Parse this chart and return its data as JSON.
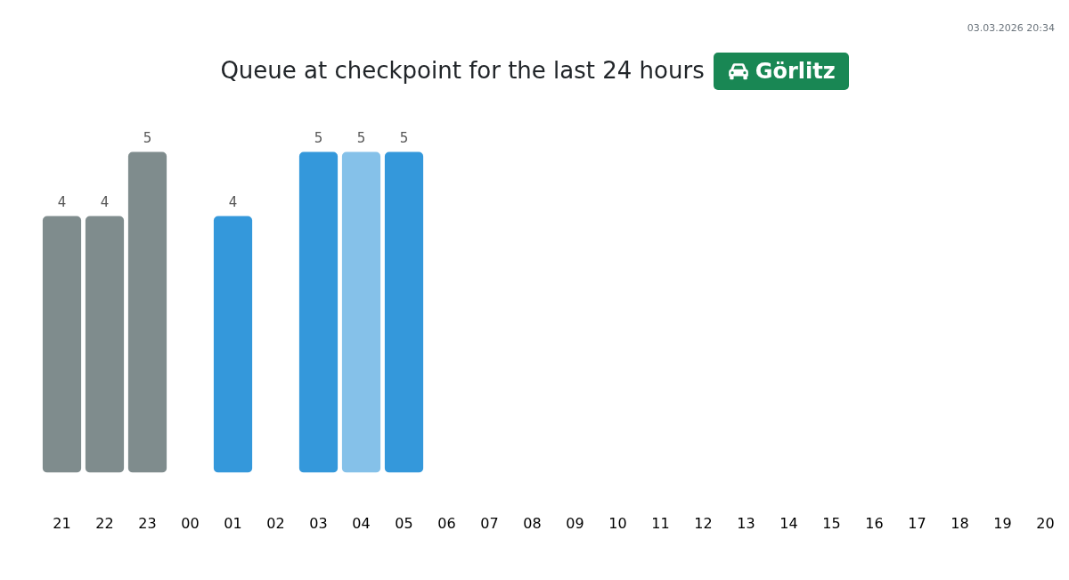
{
  "chart_data": {
    "type": "bar",
    "title": "Queue at checkpoint for the last 24 hours",
    "subtitle": "Görlitz",
    "annotations": [
      "03.03.2026 20:34"
    ],
    "categories": [
      "21",
      "22",
      "23",
      "00",
      "01",
      "02",
      "03",
      "04",
      "05",
      "06",
      "07",
      "08",
      "09",
      "10",
      "11",
      "12",
      "13",
      "14",
      "15",
      "16",
      "17",
      "18",
      "19",
      "20"
    ],
    "values": [
      4,
      4,
      5,
      null,
      4,
      null,
      5,
      5,
      5,
      null,
      null,
      null,
      null,
      null,
      null,
      null,
      null,
      null,
      null,
      null,
      null,
      null,
      null,
      null
    ],
    "colors": [
      "#7f8c8d",
      "#7f8c8d",
      "#7f8c8d",
      null,
      "#3498db",
      null,
      "#3498db",
      "#85c1e9",
      "#3498db",
      null,
      null,
      null,
      null,
      null,
      null,
      null,
      null,
      null,
      null,
      null,
      null,
      null,
      null,
      null
    ],
    "data_labels": true
  }
}
